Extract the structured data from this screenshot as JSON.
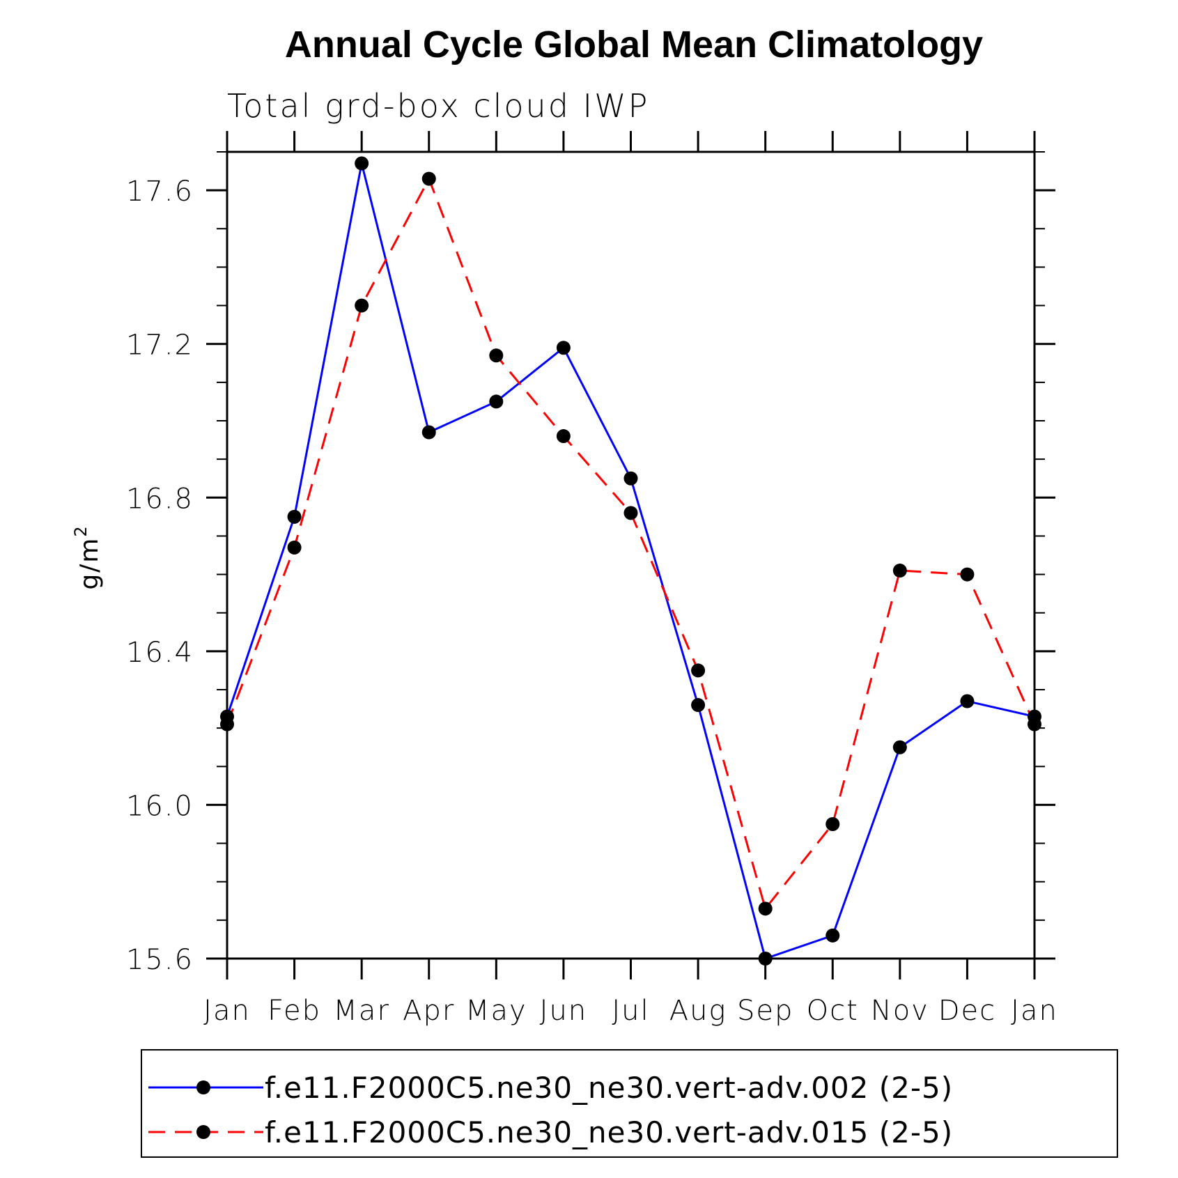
{
  "chart_data": {
    "type": "line",
    "title": "Annual Cycle Global Mean Climatology",
    "subtitle": "Total grd-box cloud IWP",
    "ylabel": "g/m",
    "ylabel_sup": "2",
    "xlabel": "",
    "categories": [
      "Jan",
      "Feb",
      "Mar",
      "Apr",
      "May",
      "Jun",
      "Jul",
      "Aug",
      "Sep",
      "Oct",
      "Nov",
      "Dec",
      "Jan"
    ],
    "ylim": [
      15.6,
      17.7
    ],
    "yticks": [
      15.6,
      16.0,
      16.4,
      16.8,
      17.2,
      17.6
    ],
    "ytick_labels": [
      "15.6",
      "16.0",
      "16.4",
      "16.8",
      "17.2",
      "17.6"
    ],
    "y_minor_step": 0.1,
    "legend_position": "bottom",
    "series": [
      {
        "name": "f.e11.F2000C5.ne30_ne30.vert-adv.002 (2-5)",
        "color": "#0000ff",
        "style": "solid",
        "values": [
          16.23,
          16.75,
          17.67,
          16.97,
          17.05,
          17.19,
          16.85,
          16.26,
          15.6,
          15.66,
          16.15,
          16.27,
          16.23
        ]
      },
      {
        "name": "f.e11.F2000C5.ne30_ne30.vert-adv.015 (2-5)",
        "color": "#ff0000",
        "style": "dashed",
        "values": [
          16.21,
          16.67,
          17.3,
          17.63,
          17.17,
          16.96,
          16.76,
          16.35,
          15.73,
          15.95,
          16.61,
          16.6,
          16.21
        ]
      }
    ]
  }
}
